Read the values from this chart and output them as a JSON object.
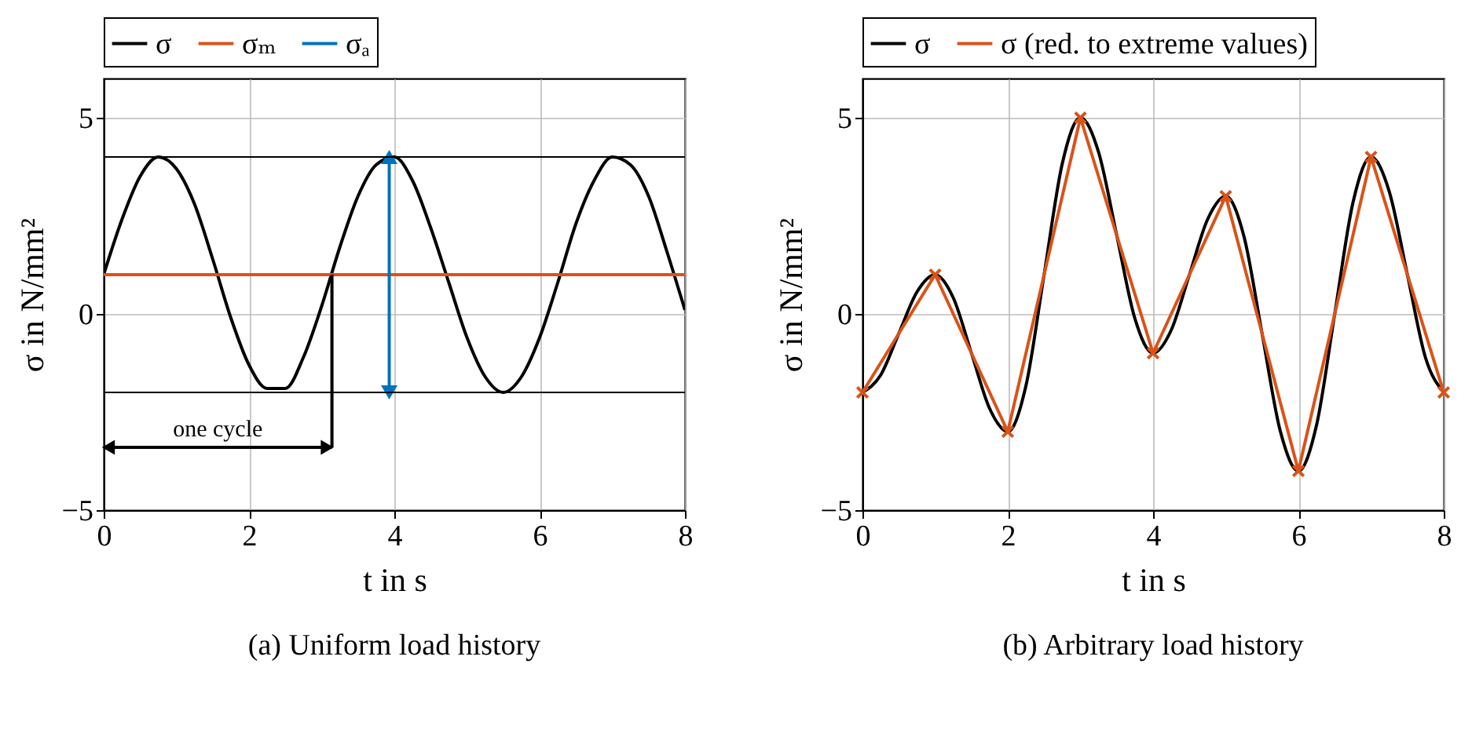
{
  "chart_data": [
    {
      "type": "line",
      "title": "(a) Uniform load history",
      "xlabel": "t in s",
      "ylabel": "σ in N/mm²",
      "xlim": [
        0,
        8
      ],
      "xticks": [
        0,
        2,
        4,
        6,
        8
      ],
      "ylim": [
        -5,
        6
      ],
      "yticks": [
        -5,
        0,
        5
      ],
      "grid": true,
      "legend": "top",
      "series": [
        {
          "name": "σ",
          "color": "#000000",
          "x": [
            0,
            0.25,
            0.5,
            0.75,
            1,
            1.25,
            1.5,
            1.75,
            2,
            2.25,
            2.5,
            2.75,
            3,
            3.25,
            3.5,
            3.75,
            4,
            4.25,
            4.5,
            4.75,
            5,
            5.25,
            5.5,
            5.75,
            6,
            6.25,
            6.5,
            6.75,
            7,
            7.25,
            7.5,
            7.75,
            8
          ],
          "values": [
            1,
            2.4,
            3.5,
            4,
            3.7,
            2.8,
            1.4,
            -0.1,
            -1.3,
            -1.9,
            -1.9,
            -1.1,
            0.2,
            1.7,
            3,
            3.8,
            4,
            3.4,
            2.2,
            0.8,
            -0.6,
            -1.6,
            -2,
            -1.6,
            -0.6,
            0.8,
            2.3,
            3.4,
            4,
            3.8,
            3,
            1.6,
            0.1
          ]
        },
        {
          "name": "σₘ",
          "color": "#d95319",
          "x": [
            0,
            8
          ],
          "values": [
            1,
            1
          ]
        },
        {
          "name": "σₐ",
          "color": "#0072bd",
          "x": [
            3.93,
            3.93
          ],
          "values": [
            -2,
            4
          ],
          "marker": "triangle"
        }
      ],
      "ref_lines": [
        {
          "axis": "y",
          "value": 4,
          "color": "#000000"
        },
        {
          "axis": "y",
          "value": -2,
          "color": "#000000"
        }
      ],
      "annotations": [
        "one cycle"
      ]
    },
    {
      "type": "line",
      "title": "(b) Arbitrary load history",
      "xlabel": "t in s",
      "ylabel": "σ in N/mm²",
      "xlim": [
        0,
        8
      ],
      "xticks": [
        0,
        2,
        4,
        6,
        8
      ],
      "ylim": [
        -5,
        6
      ],
      "yticks": [
        -5,
        0,
        5
      ],
      "grid": true,
      "legend": "top",
      "series": [
        {
          "name": "σ",
          "color": "#000000",
          "x": [
            0,
            0.25,
            0.5,
            0.75,
            1,
            1.25,
            1.5,
            1.75,
            2,
            2.25,
            2.5,
            2.75,
            3,
            3.25,
            3.5,
            3.75,
            4,
            4.25,
            4.5,
            4.75,
            5,
            5.25,
            5.5,
            5.75,
            6,
            6.25,
            6.5,
            6.75,
            7,
            7.25,
            7.5,
            7.75,
            8
          ],
          "values": [
            -2,
            -1.56,
            -0.5,
            0.56,
            1,
            0.41,
            -1,
            -2.41,
            -3,
            -1.83,
            1,
            3.83,
            5,
            4.12,
            2,
            -0.12,
            -1,
            -0.41,
            1,
            2.41,
            3,
            1.98,
            -0.5,
            -2.98,
            -4,
            -2.83,
            0,
            2.83,
            4,
            3.12,
            1,
            -1.12,
            -2
          ]
        },
        {
          "name": "σ (red. to extreme values)",
          "color": "#d95319",
          "x": [
            0,
            1,
            2,
            3,
            4,
            5,
            6,
            7,
            8
          ],
          "values": [
            -2,
            1,
            -3,
            5,
            -1,
            3,
            -4,
            4,
            -2
          ],
          "marker": "cross"
        }
      ]
    }
  ]
}
